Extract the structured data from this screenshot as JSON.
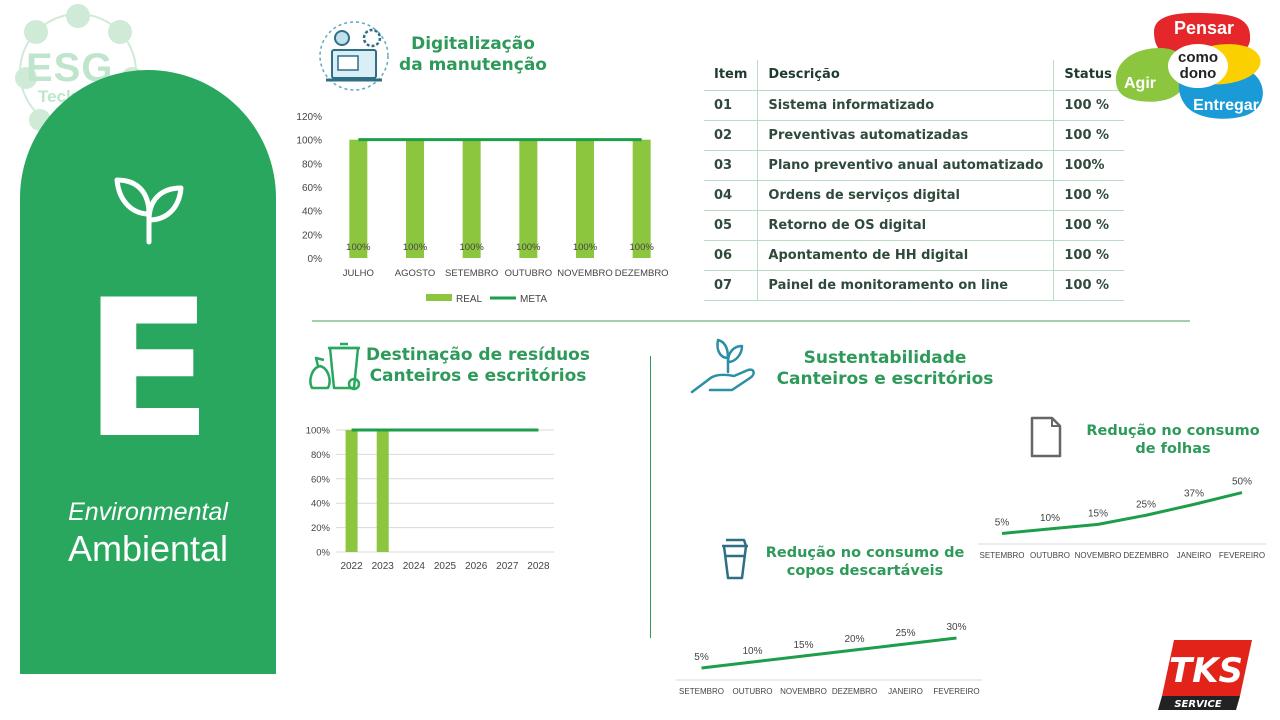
{
  "esg_logo": {
    "title": "ESG",
    "subtitle": "Teckma"
  },
  "banner": {
    "letter": "E",
    "english": "Environmental",
    "portuguese": "Ambiental"
  },
  "digitalizacao": {
    "title_line1": "Digitalização",
    "title_line2": "da manutenção"
  },
  "table": {
    "headers": [
      "Item",
      "Descrição",
      "Status"
    ],
    "rows": [
      [
        "01",
        "Sistema informatizado",
        "100 %"
      ],
      [
        "02",
        "Preventivas automatizadas",
        "100 %"
      ],
      [
        "03",
        "Plano preventivo anual automatizado",
        "100%"
      ],
      [
        "04",
        "Ordens de serviços digital",
        "100 %"
      ],
      [
        "05",
        "Retorno de OS digital",
        "100 %"
      ],
      [
        "06",
        "Apontamento de HH digital",
        "100 %"
      ],
      [
        "07",
        "Painel de monitoramento on line",
        "100 %"
      ]
    ]
  },
  "residuos": {
    "title_line1": "Destinação de resíduos",
    "title_line2": "Canteiros e escritórios"
  },
  "sustentabilidade": {
    "title_line1": "Sustentabilidade",
    "title_line2": "Canteiros e escritórios"
  },
  "folhas": {
    "title_line1": "Redução no consumo",
    "title_line2": "de folhas"
  },
  "copos": {
    "title_line1": "Redução no consumo de",
    "title_line2": "copos descartáveis"
  },
  "logos": {
    "pensar": {
      "pensar": "Pensar",
      "agir": "Agir",
      "como": "como",
      "dono": "dono",
      "entregar": "Entregar"
    },
    "tks": {
      "name": "TKS",
      "tagline": "SERVICE"
    }
  },
  "colors": {
    "green": "#2aa75f",
    "title_green": "#2e9a5a",
    "bar_green": "#8cc63f",
    "line_green": "#1e9e4a"
  },
  "chart_data": [
    {
      "type": "bar",
      "categories": [
        "JULHO",
        "AGOSTO",
        "SETEMBRO",
        "OUTUBRO",
        "NOVEMBRO",
        "DEZEMBRO"
      ],
      "series": [
        {
          "name": "REAL",
          "kind": "bar",
          "values": [
            100,
            100,
            100,
            100,
            100,
            100
          ]
        },
        {
          "name": "META",
          "kind": "line",
          "values": [
            100,
            100,
            100,
            100,
            100,
            100
          ]
        }
      ],
      "data_labels": [
        "100%",
        "100%",
        "100%",
        "100%",
        "100%",
        "100%"
      ],
      "ylim": [
        0,
        120
      ],
      "yticks": [
        "0%",
        "20%",
        "40%",
        "60%",
        "80%",
        "100%",
        "120%"
      ],
      "legend": "bottom",
      "grid": false
    },
    {
      "type": "bar",
      "categories": [
        "2022",
        "2023",
        "2024",
        "2025",
        "2026",
        "2027",
        "2028"
      ],
      "series": [
        {
          "kind": "bar",
          "values": [
            100,
            100,
            null,
            null,
            null,
            null,
            null
          ]
        },
        {
          "kind": "line",
          "values": [
            100,
            100,
            100,
            100,
            100,
            100,
            100
          ]
        }
      ],
      "ylim": [
        0,
        100
      ],
      "yticks": [
        "0%",
        "20%",
        "40%",
        "60%",
        "80%",
        "100%"
      ],
      "grid": true
    },
    {
      "type": "line",
      "categories": [
        "SETEMBRO",
        "OUTUBRO",
        "NOVEMBRO",
        "DEZEMBRO",
        "JANEIRO",
        "FEVEREIRO"
      ],
      "values": [
        5,
        10,
        15,
        25,
        37,
        50
      ],
      "data_labels": [
        "5%",
        "10%",
        "15%",
        "25%",
        "37%",
        "50%"
      ],
      "ylim": [
        0,
        55
      ]
    },
    {
      "type": "line",
      "categories": [
        "SETEMBRO",
        "OUTUBRO",
        "NOVEMBRO",
        "DEZEMBRO",
        "JANEIRO",
        "FEVEREIRO"
      ],
      "values": [
        5,
        10,
        15,
        20,
        25,
        30
      ],
      "data_labels": [
        "5%",
        "10%",
        "15%",
        "20%",
        "25%",
        "30%"
      ],
      "ylim": [
        0,
        35
      ]
    }
  ]
}
